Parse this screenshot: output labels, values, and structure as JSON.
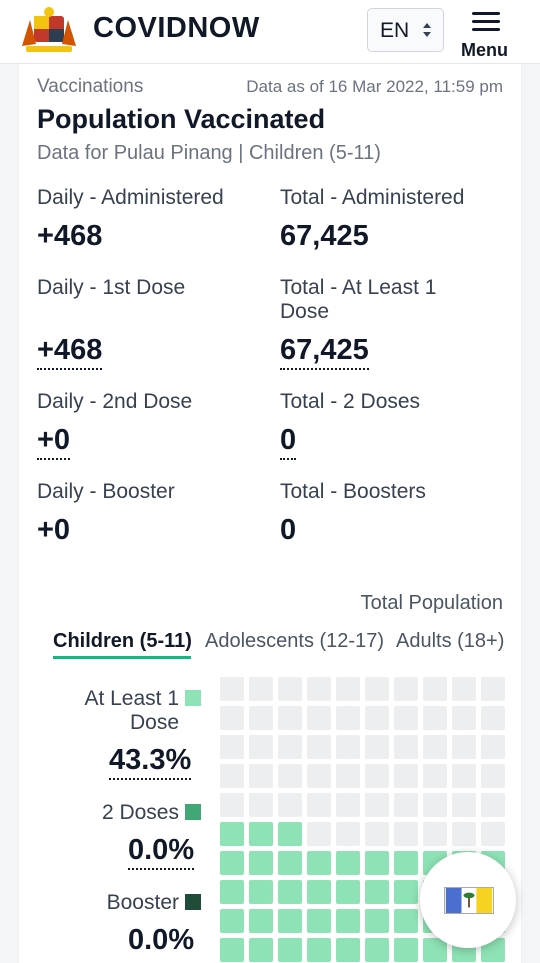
{
  "header": {
    "brand": "COVIDNOW",
    "language": "EN",
    "menu_label": "Menu"
  },
  "card": {
    "section": "Vaccinations",
    "as_of": "Data as of 16 Mar 2022, 11:59 pm",
    "title": "Population Vaccinated",
    "subtitle": "Data for Pulau Pinang | Children (5-11)"
  },
  "stats": {
    "daily_administered": {
      "label": "Daily - Administered",
      "value": "+468"
    },
    "total_administered": {
      "label": "Total - Administered",
      "value": "67,425"
    },
    "daily_first": {
      "label": "Daily - 1st Dose",
      "value": "+468"
    },
    "total_first": {
      "label": "Total - At Least 1 Dose",
      "value": "67,425"
    },
    "daily_second": {
      "label": "Daily - 2nd Dose",
      "value": "+0"
    },
    "total_second": {
      "label": "Total - 2 Doses",
      "value": "0"
    },
    "daily_booster": {
      "label": "Daily - Booster",
      "value": "+0"
    },
    "total_booster": {
      "label": "Total - Boosters",
      "value": "0"
    }
  },
  "population": {
    "total_label": "Total Population",
    "tabs": [
      "Children (5-11)",
      "Adolescents (12-17)",
      "Adults (18+)"
    ],
    "active_tab": 0
  },
  "legend": {
    "first": {
      "label": "At Least 1 Dose",
      "value": "43.3%",
      "color": "#8ee3b6"
    },
    "second": {
      "label": "2 Doses",
      "value": "0.0%",
      "color": "#3fa874"
    },
    "booster": {
      "label": "Booster",
      "value": "0.0%",
      "color": "#1f4d3a"
    }
  },
  "waffle": {
    "empty_color": "#eceef0",
    "fill_fraction_first_dose": 0.433
  },
  "colors": {
    "accent": "#10b981"
  }
}
